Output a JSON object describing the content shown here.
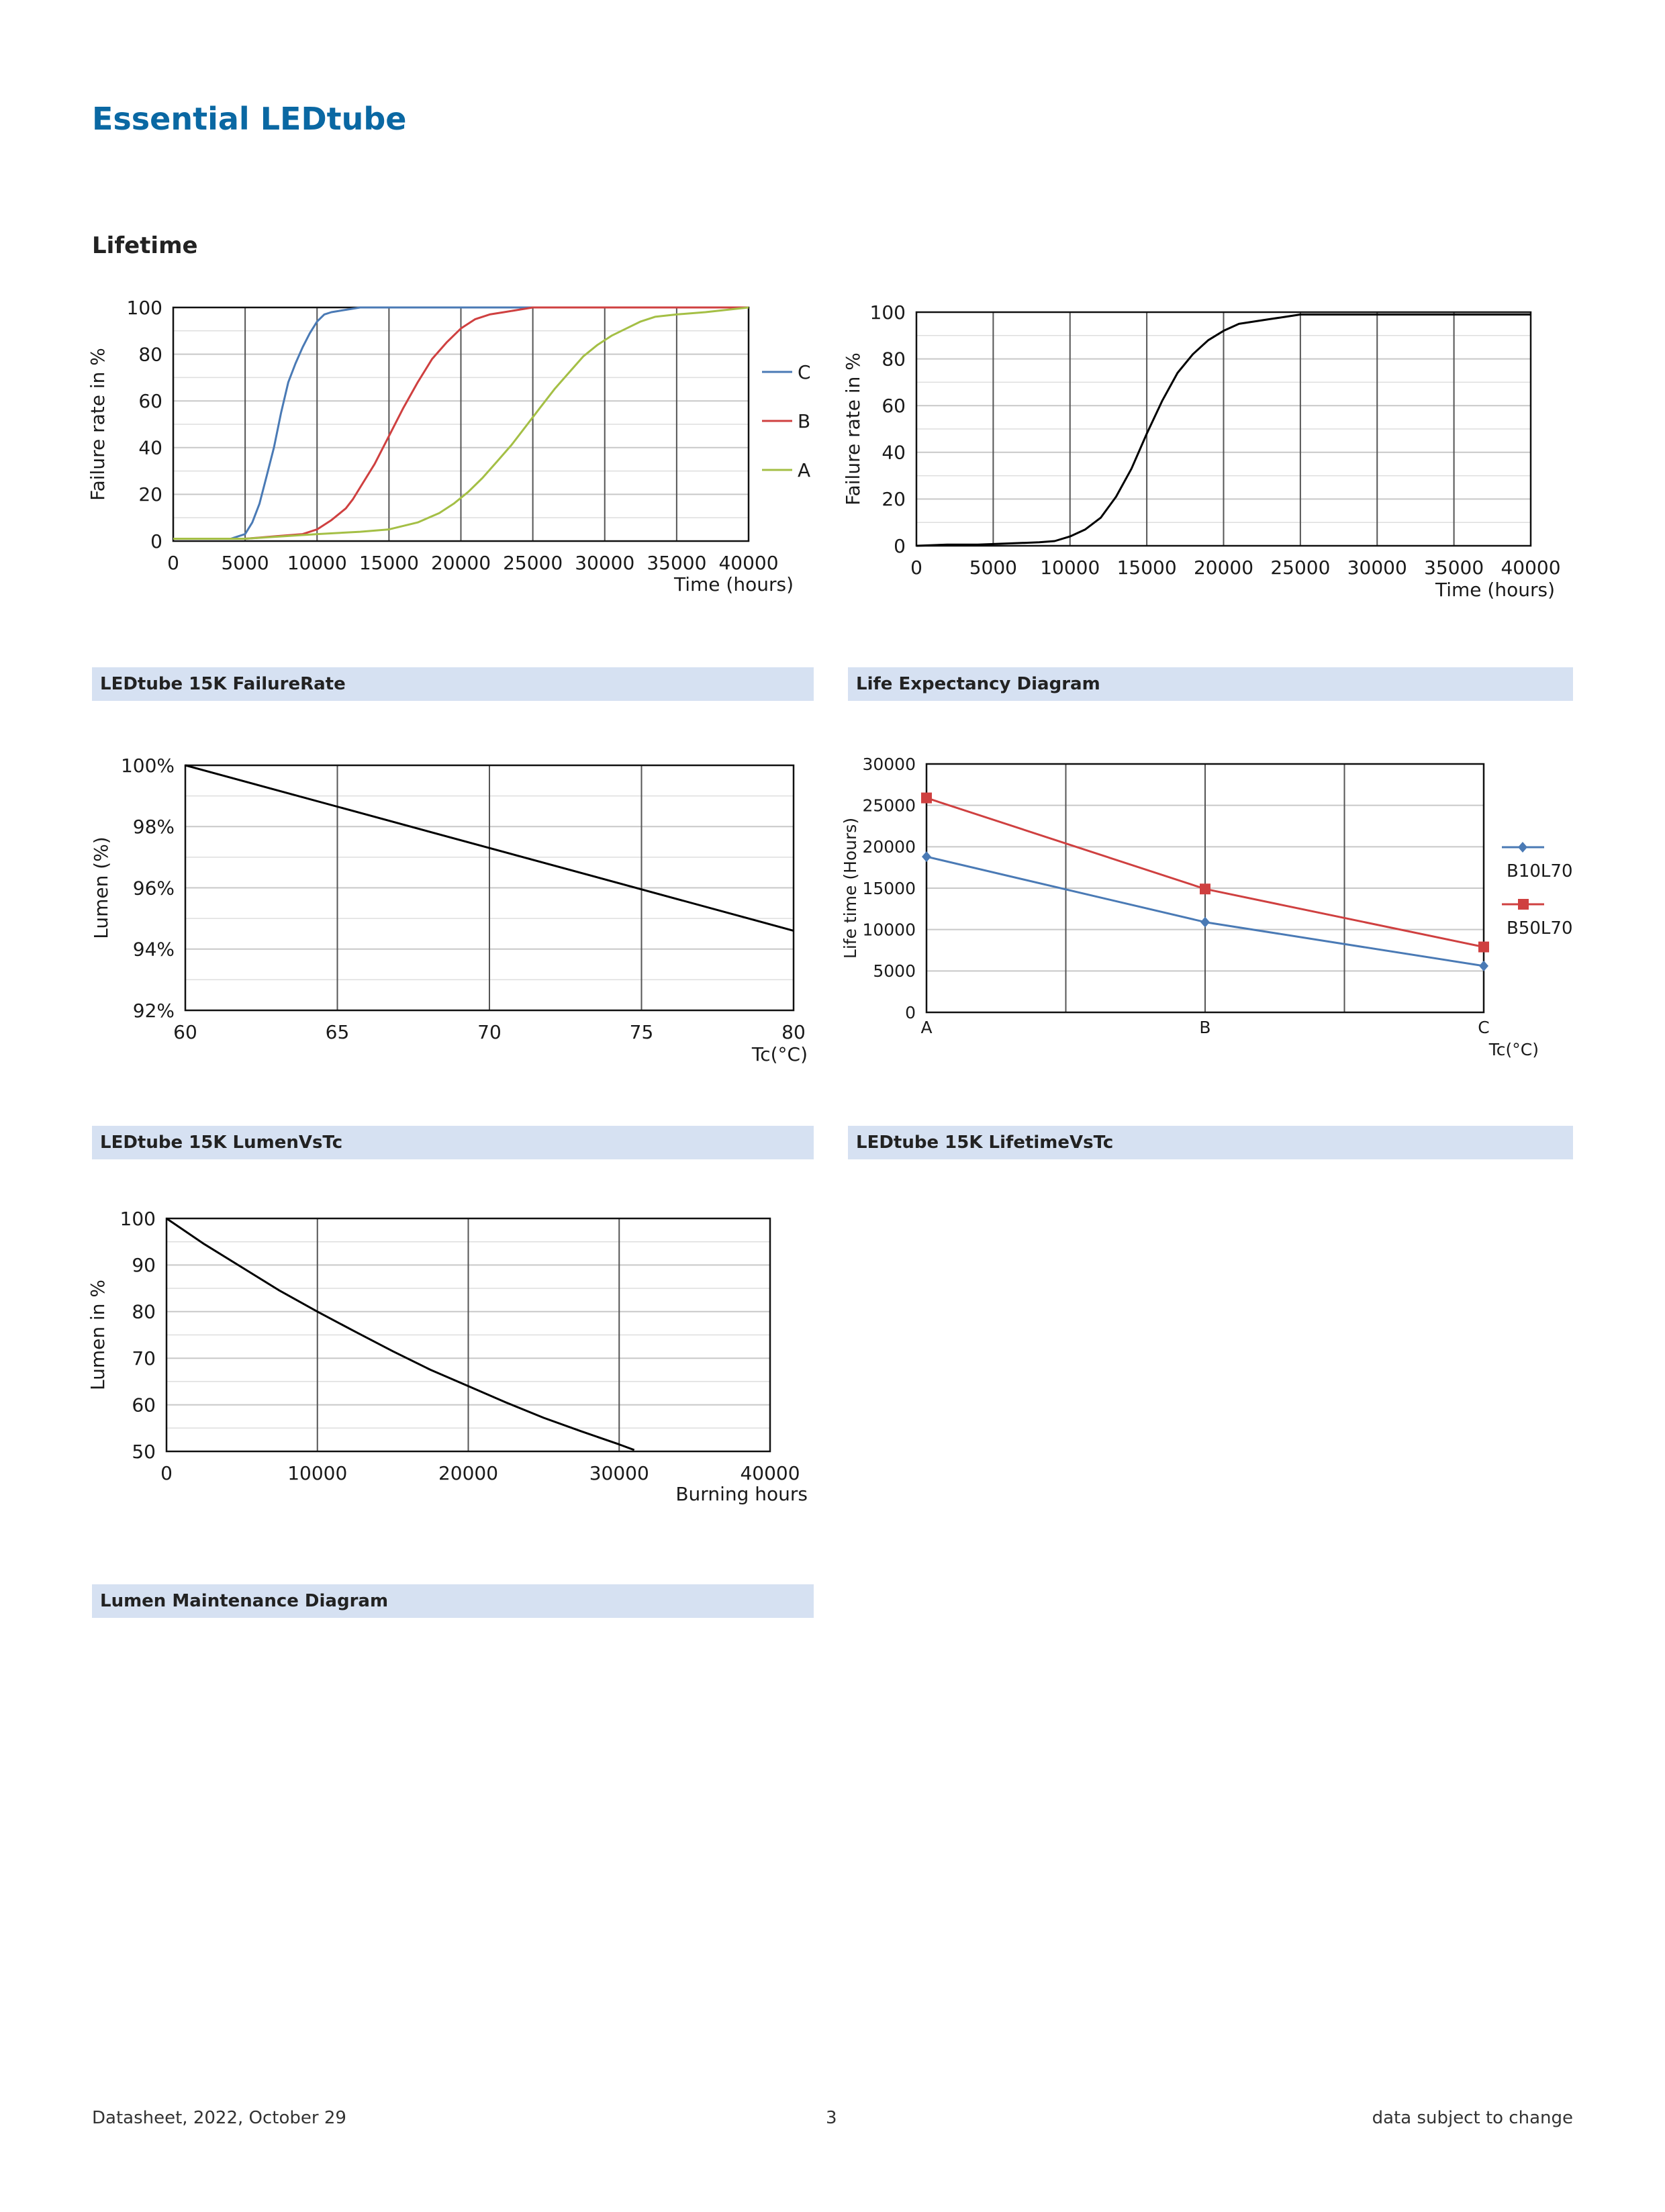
{
  "page": {
    "title": "Essential LEDtube",
    "section": "Lifetime",
    "footer_left": "Datasheet, 2022, October 29",
    "footer_center": "3",
    "footer_right": "data subject to change"
  },
  "captions": {
    "failure_rate": "LEDtube 15K FailureRate",
    "life_expectancy": "Life Expectancy Diagram",
    "lumen_vs_tc": "LEDtube 15K LumenVsTc",
    "lifetime_vs_tc": "LEDtube 15K LifetimeVsTc",
    "lumen_maintenance": "Lumen Maintenance Diagram"
  },
  "chart_data": [
    {
      "id": "failure_rate",
      "type": "line",
      "ylabel": "Failure rate in %",
      "xlabel": "Time (hours)",
      "xlim": [
        0,
        40000
      ],
      "ylim": [
        0,
        100
      ],
      "xticks": [
        0,
        5000,
        10000,
        15000,
        20000,
        25000,
        30000,
        35000,
        40000
      ],
      "yticks": [
        0,
        20,
        40,
        60,
        80,
        100
      ],
      "legend_position": "right",
      "series": [
        {
          "name": "C",
          "color": "#4a7ab5",
          "points": [
            [
              0,
              1
            ],
            [
              4000,
              1
            ],
            [
              5000,
              3
            ],
            [
              5500,
              8
            ],
            [
              6000,
              16
            ],
            [
              6500,
              28
            ],
            [
              7000,
              40
            ],
            [
              7500,
              55
            ],
            [
              8000,
              68
            ],
            [
              8500,
              76
            ],
            [
              9000,
              83
            ],
            [
              9500,
              89
            ],
            [
              10000,
              94
            ],
            [
              10500,
              97
            ],
            [
              11000,
              98
            ],
            [
              12000,
              99
            ],
            [
              13000,
              100
            ],
            [
              40000,
              100
            ]
          ]
        },
        {
          "name": "B",
          "color": "#cf4040",
          "points": [
            [
              0,
              1
            ],
            [
              5000,
              1
            ],
            [
              7000,
              2
            ],
            [
              9000,
              3
            ],
            [
              10000,
              5
            ],
            [
              11000,
              9
            ],
            [
              12000,
              14
            ],
            [
              12500,
              18
            ],
            [
              13000,
              23
            ],
            [
              14000,
              33
            ],
            [
              15000,
              45
            ],
            [
              16000,
              57
            ],
            [
              17000,
              68
            ],
            [
              18000,
              78
            ],
            [
              19000,
              85
            ],
            [
              20000,
              91
            ],
            [
              21000,
              95
            ],
            [
              22000,
              97
            ],
            [
              23000,
              98
            ],
            [
              24000,
              99
            ],
            [
              25000,
              100
            ],
            [
              40000,
              100
            ]
          ]
        },
        {
          "name": "A",
          "color": "#a4bf45",
          "points": [
            [
              0,
              1
            ],
            [
              5000,
              1
            ],
            [
              10000,
              3
            ],
            [
              13000,
              4
            ],
            [
              15000,
              5
            ],
            [
              17000,
              8
            ],
            [
              18500,
              12
            ],
            [
              19500,
              16
            ],
            [
              20500,
              21
            ],
            [
              21500,
              27
            ],
            [
              22500,
              34
            ],
            [
              23500,
              41
            ],
            [
              24500,
              49
            ],
            [
              25500,
              57
            ],
            [
              26500,
              65
            ],
            [
              27500,
              72
            ],
            [
              28500,
              79
            ],
            [
              29500,
              84
            ],
            [
              30500,
              88
            ],
            [
              31500,
              91
            ],
            [
              32500,
              94
            ],
            [
              33500,
              96
            ],
            [
              35000,
              97
            ],
            [
              37000,
              98
            ],
            [
              40000,
              100
            ]
          ]
        }
      ]
    },
    {
      "id": "life_expectancy",
      "type": "line",
      "ylabel": "Failure rate in %",
      "xlabel": "Time (hours)",
      "xlim": [
        0,
        40000
      ],
      "ylim": [
        0,
        100
      ],
      "xticks": [
        0,
        5000,
        10000,
        15000,
        20000,
        25000,
        30000,
        35000,
        40000
      ],
      "yticks": [
        0,
        20,
        40,
        60,
        80,
        100
      ],
      "series": [
        {
          "name": "",
          "color": "#000000",
          "points": [
            [
              0,
              0
            ],
            [
              2000,
              0.5
            ],
            [
              4000,
              0.5
            ],
            [
              6000,
              1
            ],
            [
              8000,
              1.5
            ],
            [
              9000,
              2
            ],
            [
              10000,
              4
            ],
            [
              11000,
              7
            ],
            [
              12000,
              12
            ],
            [
              13000,
              21
            ],
            [
              14000,
              33
            ],
            [
              15000,
              48
            ],
            [
              16000,
              62
            ],
            [
              17000,
              74
            ],
            [
              18000,
              82
            ],
            [
              19000,
              88
            ],
            [
              20000,
              92
            ],
            [
              21000,
              95
            ],
            [
              22000,
              96
            ],
            [
              23000,
              97
            ],
            [
              24000,
              98
            ],
            [
              25000,
              99
            ],
            [
              40000,
              99
            ]
          ]
        }
      ]
    },
    {
      "id": "lumen_vs_tc",
      "type": "line",
      "ylabel": "Lumen (%)",
      "xlabel": "Tc(°C)",
      "xlim": [
        60,
        80
      ],
      "ylim": [
        92,
        100
      ],
      "xticks": [
        60,
        65,
        70,
        75,
        80
      ],
      "yticks": [
        92,
        94,
        96,
        98,
        100
      ],
      "ytick_labels": [
        "92%",
        "94%",
        "96%",
        "98%",
        "100%"
      ],
      "series": [
        {
          "name": "",
          "color": "#000000",
          "points": [
            [
              60,
              100
            ],
            [
              80,
              94.6
            ]
          ]
        }
      ]
    },
    {
      "id": "lifetime_vs_tc",
      "type": "line",
      "ylabel": "Life time (Hours)",
      "xlabel": "Tc(°C)",
      "categories": [
        "A",
        "B",
        "C"
      ],
      "ylim": [
        0,
        30000
      ],
      "yticks": [
        0,
        5000,
        10000,
        15000,
        20000,
        25000,
        30000
      ],
      "legend_position": "right",
      "series": [
        {
          "name": "B10L70",
          "color": "#4a7ab5",
          "marker": "diamond",
          "values": [
            18800,
            10900,
            5600
          ]
        },
        {
          "name": "B50L70",
          "color": "#cf4040",
          "marker": "square",
          "values": [
            25900,
            14900,
            7900
          ]
        }
      ]
    },
    {
      "id": "lumen_maintenance",
      "type": "line",
      "ylabel": "Lumen in %",
      "xlabel": "Burning hours",
      "xlim": [
        0,
        40000
      ],
      "ylim": [
        50,
        100
      ],
      "xticks": [
        0,
        10000,
        20000,
        30000,
        40000
      ],
      "yticks": [
        50,
        60,
        70,
        80,
        90,
        100
      ],
      "series": [
        {
          "name": "",
          "color": "#000000",
          "points": [
            [
              0,
              100
            ],
            [
              2500,
              94.5
            ],
            [
              5000,
              89.5
            ],
            [
              7500,
              84.5
            ],
            [
              10000,
              80
            ],
            [
              12500,
              75.7
            ],
            [
              15000,
              71.5
            ],
            [
              17500,
              67.5
            ],
            [
              20000,
              64
            ],
            [
              22500,
              60.5
            ],
            [
              25000,
              57.2
            ],
            [
              27500,
              54.3
            ],
            [
              30000,
              51.5
            ],
            [
              31000,
              50.3
            ]
          ]
        }
      ]
    }
  ]
}
